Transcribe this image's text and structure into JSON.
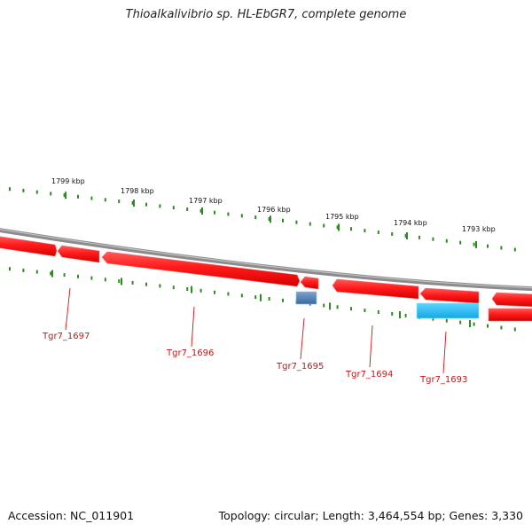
{
  "title": "Thioalkalivibrio sp. HL-EbGR7, complete genome",
  "footer": {
    "accession": "Accession: NC_011901",
    "summary": "Topology: circular; Length: 3,464,554 bp; Genes: 3,330"
  },
  "colors": {
    "backbone": "#8a8a8a",
    "gene_forward": "#ff1a1a",
    "rna_dark": "#4a7ab0",
    "rna_light": "#20b8f0",
    "tick": "#2e8b22",
    "gene_label": "#cc1111"
  },
  "scale_labels": [
    "1799 kbp",
    "1798 kbp",
    "1797 kbp",
    "1796 kbp",
    "1795 kbp",
    "1794 kbp",
    "1793 kbp"
  ],
  "gene_labels": [
    "Tgr7_1697",
    "Tgr7_1696",
    "Tgr7_1695",
    "Tgr7_1694",
    "Tgr7_1693"
  ]
}
